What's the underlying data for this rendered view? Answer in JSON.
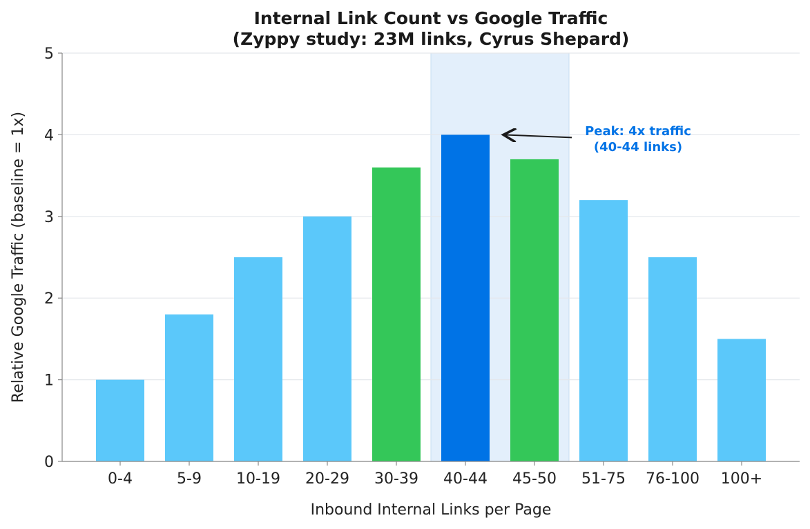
{
  "chart_data": {
    "type": "bar",
    "title": "Internal Link Count vs Google Traffic",
    "subtitle": "(Zyppy study: 23M links, Cyrus Shepard)",
    "xlabel": "Inbound Internal Links per Page",
    "ylabel": "Relative Google Traffic (baseline = 1x)",
    "categories": [
      "0-4",
      "5-9",
      "10-19",
      "20-29",
      "30-39",
      "40-44",
      "45-50",
      "51-75",
      "76-100",
      "100+"
    ],
    "values": [
      1.0,
      1.8,
      2.5,
      3.0,
      3.6,
      4.0,
      3.7,
      3.2,
      2.5,
      1.5
    ],
    "bar_colors": [
      "#5bc8fa",
      "#5bc8fa",
      "#5bc8fa",
      "#5bc8fa",
      "#34c759",
      "#0073e6",
      "#34c759",
      "#5bc8fa",
      "#5bc8fa",
      "#5bc8fa"
    ],
    "ylim": [
      0,
      5
    ],
    "yticks": [
      "0",
      "1",
      "2",
      "3",
      "4",
      "5"
    ],
    "grid": true,
    "highlight": {
      "from_category": "40-44",
      "to_category": "45-50",
      "color": "#e3effb"
    },
    "annotation": {
      "line1": "Peak: 4x traffic",
      "line2": "(40-44 links)",
      "target_category": "40-44",
      "target_value": 4.0,
      "color": "#0073e6"
    }
  }
}
